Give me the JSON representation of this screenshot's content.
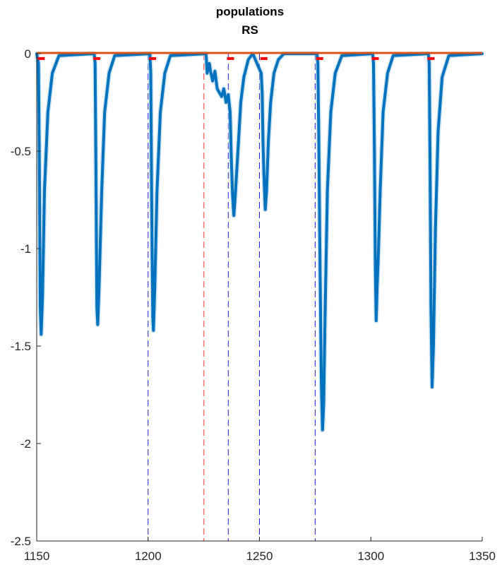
{
  "chart_data": {
    "type": "line",
    "title": "populations",
    "subtitle": "RS",
    "xlabel": "",
    "ylabel": "",
    "xlim": [
      1150,
      1350
    ],
    "ylim": [
      -2.5,
      0
    ],
    "xticks": [
      1150,
      1200,
      1250,
      1300,
      1350
    ],
    "yticks": [
      0,
      -0.5,
      -1,
      -1.5,
      -2,
      -2.5
    ],
    "xtick_labels": [
      "1150",
      "1200",
      "1250",
      "1300",
      "1350"
    ],
    "ytick_labels": [
      "0",
      "-0.5",
      "-1",
      "-1.5",
      "-2",
      "-2.5"
    ],
    "grid": false,
    "colors": {
      "main_trace": "#0072BD",
      "shade": "#a9cfe8",
      "baseline": "#D95319",
      "blue_markers": "#1f1fd6",
      "red_marker": "#ff6b6b",
      "spike_marks": "#ff0000",
      "axes": "#262626"
    },
    "vertical_markers": {
      "blue_dashed_x": [
        1200,
        1236,
        1250,
        1275
      ],
      "red_dashed_x": [
        1225
      ]
    },
    "spike_marks_x": [
      1152,
      1177,
      1202,
      1237,
      1252,
      1277,
      1302,
      1327
    ],
    "spike_marks_y": -0.025,
    "series": [
      {
        "values_style": "mean trace",
        "points": [
          [
            1150.0,
            0.0
          ],
          [
            1150.8,
            -0.05
          ],
          [
            1151.2,
            -0.6
          ],
          [
            1151.6,
            -1.3
          ],
          [
            1152.0,
            -1.44
          ],
          [
            1152.6,
            -1.25
          ],
          [
            1153.5,
            -0.7
          ],
          [
            1155.0,
            -0.3
          ],
          [
            1157.0,
            -0.1
          ],
          [
            1160.0,
            -0.01
          ],
          [
            1175.8,
            0.0
          ],
          [
            1176.2,
            -0.05
          ],
          [
            1176.6,
            -0.6
          ],
          [
            1177.0,
            -1.3
          ],
          [
            1177.4,
            -1.39
          ],
          [
            1178.0,
            -1.2
          ],
          [
            1179.2,
            -0.7
          ],
          [
            1180.5,
            -0.3
          ],
          [
            1182.5,
            -0.1
          ],
          [
            1185.0,
            -0.01
          ],
          [
            1200.8,
            0.0
          ],
          [
            1201.2,
            -0.1
          ],
          [
            1201.5,
            -0.6
          ],
          [
            1201.8,
            -1.0
          ],
          [
            1202.1,
            -1.35
          ],
          [
            1202.4,
            -1.42
          ],
          [
            1203.0,
            -1.2
          ],
          [
            1204.0,
            -0.7
          ],
          [
            1205.5,
            -0.3
          ],
          [
            1207.5,
            -0.1
          ],
          [
            1210.0,
            -0.01
          ],
          [
            1226.0,
            0.0
          ],
          [
            1226.5,
            -0.1
          ],
          [
            1227.5,
            -0.05
          ],
          [
            1228.0,
            -0.09
          ],
          [
            1229.0,
            -0.14
          ],
          [
            1230.0,
            -0.09
          ],
          [
            1231.0,
            -0.18
          ],
          [
            1232.0,
            -0.2
          ],
          [
            1233.0,
            -0.22
          ],
          [
            1234.0,
            -0.18
          ],
          [
            1235.0,
            -0.25
          ],
          [
            1236.0,
            -0.21
          ],
          [
            1236.8,
            -0.3
          ],
          [
            1237.4,
            -0.55
          ],
          [
            1237.9,
            -0.72
          ],
          [
            1238.5,
            -0.83
          ],
          [
            1239.0,
            -0.75
          ],
          [
            1239.8,
            -0.6
          ],
          [
            1240.6,
            -0.45
          ],
          [
            1241.6,
            -0.25
          ],
          [
            1243.0,
            -0.12
          ],
          [
            1245.0,
            -0.03
          ],
          [
            1247.0,
            0.0
          ],
          [
            1250.8,
            -0.1
          ],
          [
            1251.2,
            -0.2
          ],
          [
            1251.6,
            -0.45
          ],
          [
            1252.0,
            -0.62
          ],
          [
            1252.6,
            -0.8
          ],
          [
            1253.2,
            -0.7
          ],
          [
            1254.0,
            -0.45
          ],
          [
            1255.0,
            -0.25
          ],
          [
            1256.5,
            -0.1
          ],
          [
            1258.5,
            -0.03
          ],
          [
            1261.0,
            0.0
          ],
          [
            1275.8,
            0.0
          ],
          [
            1276.2,
            -0.05
          ],
          [
            1276.6,
            -0.4
          ],
          [
            1277.2,
            -1.1
          ],
          [
            1277.8,
            -1.7
          ],
          [
            1278.3,
            -1.93
          ],
          [
            1278.8,
            -1.8
          ],
          [
            1279.5,
            -1.3
          ],
          [
            1280.5,
            -0.7
          ],
          [
            1282.0,
            -0.3
          ],
          [
            1284.0,
            -0.1
          ],
          [
            1287.0,
            -0.01
          ],
          [
            1300.8,
            0.0
          ],
          [
            1301.2,
            -0.05
          ],
          [
            1301.6,
            -0.5
          ],
          [
            1302.0,
            -1.1
          ],
          [
            1302.4,
            -1.37
          ],
          [
            1302.8,
            -1.2
          ],
          [
            1303.3,
            -1.05
          ],
          [
            1304.2,
            -0.7
          ],
          [
            1305.5,
            -0.3
          ],
          [
            1307.5,
            -0.1
          ],
          [
            1310.0,
            -0.01
          ],
          [
            1325.8,
            0.0
          ],
          [
            1326.2,
            -0.05
          ],
          [
            1326.6,
            -0.6
          ],
          [
            1327.0,
            -1.3
          ],
          [
            1327.5,
            -1.71
          ],
          [
            1328.1,
            -1.5
          ],
          [
            1329.0,
            -0.9
          ],
          [
            1330.2,
            -0.4
          ],
          [
            1332.0,
            -0.12
          ],
          [
            1335.0,
            -0.01
          ],
          [
            1350.0,
            0.0
          ]
        ]
      },
      {
        "values_style": "baseline",
        "points": [
          [
            1150,
            0.0
          ],
          [
            1350,
            0.0
          ]
        ]
      }
    ]
  }
}
